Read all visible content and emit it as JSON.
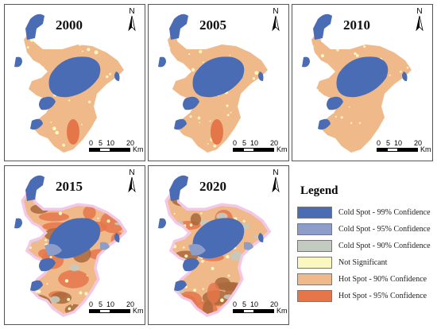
{
  "panels": [
    {
      "year": "2000",
      "map": "early"
    },
    {
      "year": "2005",
      "map": "early"
    },
    {
      "year": "2010",
      "map": "mid"
    },
    {
      "year": "2015",
      "map": "late"
    },
    {
      "year": "2020",
      "map": "late"
    }
  ],
  "north_label": "N",
  "scale": {
    "ticks": [
      "0",
      "5",
      "10",
      "20"
    ],
    "unit": "Km"
  },
  "legend": {
    "title": "Legend",
    "items": [
      {
        "label": "Cold Spot - 99% Confidence",
        "color": "#4a6cb4"
      },
      {
        "label": "Cold Spot - 95% Confidence",
        "color": "#8b9dc8"
      },
      {
        "label": "Cold Spot - 90% Confidence",
        "color": "#c3cbc0"
      },
      {
        "label": "Not Significant",
        "color": "#fbf7c0"
      },
      {
        "label": "Hot Spot - 90% Confidence",
        "color": "#f0b98a"
      },
      {
        "label": "Hot Spot - 95% Confidence",
        "color": "#e5764a"
      }
    ]
  },
  "colors": {
    "cold99": "#4a6cb4",
    "cold95": "#8b9dc8",
    "cold90": "#c3cbc0",
    "not_significant": "#fbf7c0",
    "hot90": "#f0b98a",
    "hot95": "#e5764a",
    "hot_dark": "#a8693c"
  }
}
